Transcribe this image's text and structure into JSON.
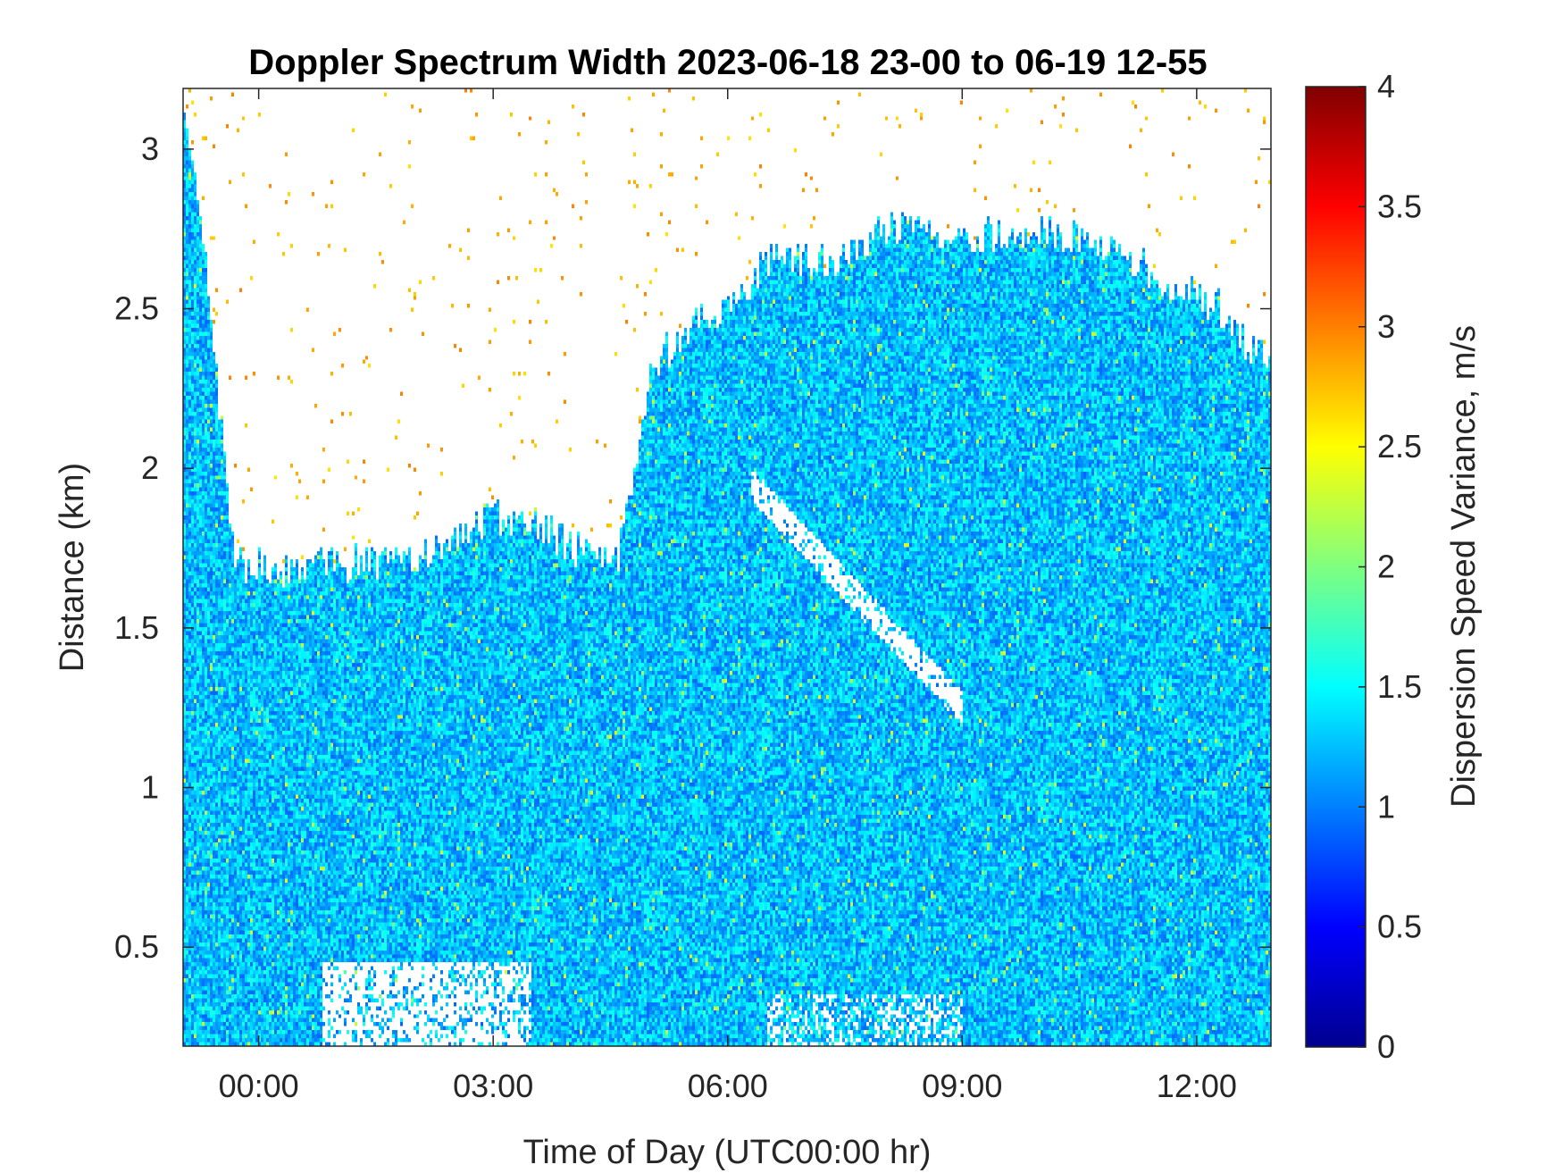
{
  "chart_data": {
    "type": "heatmap",
    "title": "Doppler Spectrum Width 2023-06-18 23-00 to 06-19 12-55",
    "xlabel": "Time of Day (UTC00:00 hr)",
    "ylabel": "Distance (km)",
    "colorbar_label": "Dispersion Speed Variance, m/s",
    "colormap": "jet",
    "x_range_hours": [
      -0.967,
      12.95
    ],
    "x_ticks": [
      {
        "value": 0,
        "label": "00:00"
      },
      {
        "value": 3,
        "label": "03:00"
      },
      {
        "value": 6,
        "label": "06:00"
      },
      {
        "value": 9,
        "label": "09:00"
      },
      {
        "value": 12,
        "label": "12:00"
      }
    ],
    "y_range_km": [
      0.19,
      3.19
    ],
    "y_ticks": [
      {
        "value": 0.5,
        "label": "0.5"
      },
      {
        "value": 1,
        "label": "1"
      },
      {
        "value": 1.5,
        "label": "1.5"
      },
      {
        "value": 2,
        "label": "2"
      },
      {
        "value": 2.5,
        "label": "2.5"
      },
      {
        "value": 3,
        "label": "3"
      }
    ],
    "clim": [
      0,
      4
    ],
    "colorbar_ticks": [
      {
        "value": 0,
        "label": "0"
      },
      {
        "value": 0.5,
        "label": "0.5"
      },
      {
        "value": 1,
        "label": "1"
      },
      {
        "value": 1.5,
        "label": "1.5"
      },
      {
        "value": 2,
        "label": "2"
      },
      {
        "value": 2.5,
        "label": "2.5"
      },
      {
        "value": 3,
        "label": "3"
      },
      {
        "value": 3.5,
        "label": "3.5"
      },
      {
        "value": 4,
        "label": "4"
      }
    ],
    "typical_value_range": [
      0.9,
      1.6
    ],
    "signal_top_km_by_hour": [
      {
        "hour": -0.9,
        "top": 3.1
      },
      {
        "hour": -0.6,
        "top": 2.45
      },
      {
        "hour": -0.3,
        "top": 1.7
      },
      {
        "hour": 0.5,
        "top": 1.68
      },
      {
        "hour": 1.0,
        "top": 1.7
      },
      {
        "hour": 2.0,
        "top": 1.72
      },
      {
        "hour": 3.0,
        "top": 1.85
      },
      {
        "hour": 3.5,
        "top": 1.85
      },
      {
        "hour": 4.0,
        "top": 1.75
      },
      {
        "hour": 4.6,
        "top": 1.7
      },
      {
        "hour": 5.0,
        "top": 2.3
      },
      {
        "hour": 5.5,
        "top": 2.45
      },
      {
        "hour": 6.0,
        "top": 2.5
      },
      {
        "hour": 6.5,
        "top": 2.65
      },
      {
        "hour": 7.5,
        "top": 2.65
      },
      {
        "hour": 8.0,
        "top": 2.75
      },
      {
        "hour": 9.0,
        "top": 2.72
      },
      {
        "hour": 10.0,
        "top": 2.75
      },
      {
        "hour": 11.0,
        "top": 2.7
      },
      {
        "hour": 11.5,
        "top": 2.6
      },
      {
        "hour": 12.3,
        "top": 2.5
      },
      {
        "hour": 12.95,
        "top": 2.3
      }
    ]
  }
}
